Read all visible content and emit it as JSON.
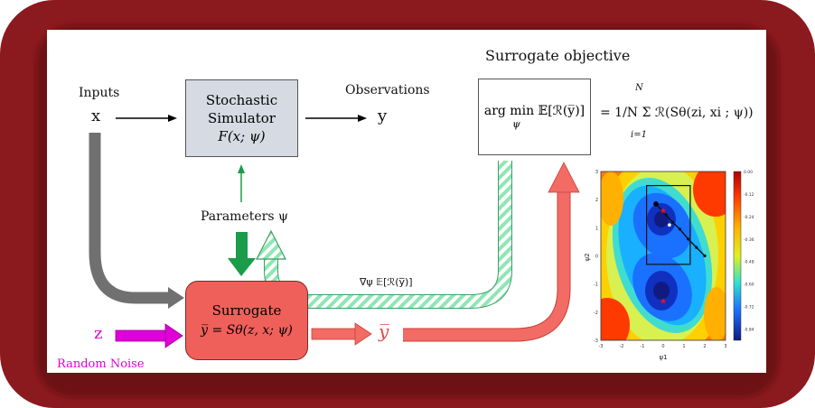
{
  "labels": {
    "inputs": "Inputs",
    "x": "x",
    "observations": "Observations",
    "y": "y",
    "surrogate_objective_title": "Surrogate objective",
    "parameters": "Parameters ψ",
    "gradient": "∇ψ 𝔼[ℛ(y̅)]",
    "z": "z",
    "random_noise": "Random Noise",
    "ybar_output": "y̅"
  },
  "simulator": {
    "line1": "Stochastic",
    "line2": "Simulator",
    "formula": "F(x; ψ)"
  },
  "surrogate": {
    "title": "Surrogate",
    "formula": "y̅ = Sθ(z, x; ψ)"
  },
  "objective": {
    "left": "arg min 𝔼[ℛ(y̅)]",
    "argmin_sub": "ψ",
    "right": "= 1/N Σ ℛ(Sθ(zi, xi ; ψ))",
    "sum_upper": "N",
    "sum_lower": "i=1"
  },
  "colors": {
    "frame": "#8b1a1f",
    "simulator_fill": "#d5dae3",
    "surrogate_fill": "#f0605a",
    "arrow_red": "#f26b64",
    "arrow_green": "#1a9c4a",
    "arrow_gray": "#707070",
    "hatch_green": "#8fe6b4",
    "magenta": "#e000d8"
  },
  "chart_data": {
    "type": "heatmap",
    "title": "",
    "xlabel": "ψ1",
    "ylabel": "ψ2",
    "x_ticks": [
      "-3",
      "-2",
      "-1",
      "0",
      "1",
      "2",
      "3"
    ],
    "y_ticks": [
      "3",
      "2",
      "1",
      "0",
      "-1",
      "-2",
      "-3"
    ],
    "xlim": [
      -3,
      3
    ],
    "ylim": [
      -3,
      3
    ],
    "colorbar_ticks": [
      "0.00",
      "-0.12",
      "-0.24",
      "-0.36",
      "-0.48",
      "-0.60",
      "-0.72",
      "-0.84"
    ],
    "colorbar_range": [
      -0.9,
      0.0
    ],
    "minima": [
      {
        "x": 0.0,
        "y": 1.6
      },
      {
        "x": 0.0,
        "y": -1.6
      }
    ],
    "optimization_path": [
      {
        "x": 2.0,
        "y": 0.0
      },
      {
        "x": 1.6,
        "y": 0.3
      },
      {
        "x": 1.2,
        "y": 0.6
      },
      {
        "x": 0.8,
        "y": 0.95
      },
      {
        "x": 0.45,
        "y": 1.2
      },
      {
        "x": 0.15,
        "y": 1.45
      },
      {
        "x": -0.35,
        "y": 1.85
      }
    ],
    "zoom_box": {
      "x0": -0.8,
      "x1": 1.3,
      "y0": -0.3,
      "y1": 2.5
    }
  }
}
